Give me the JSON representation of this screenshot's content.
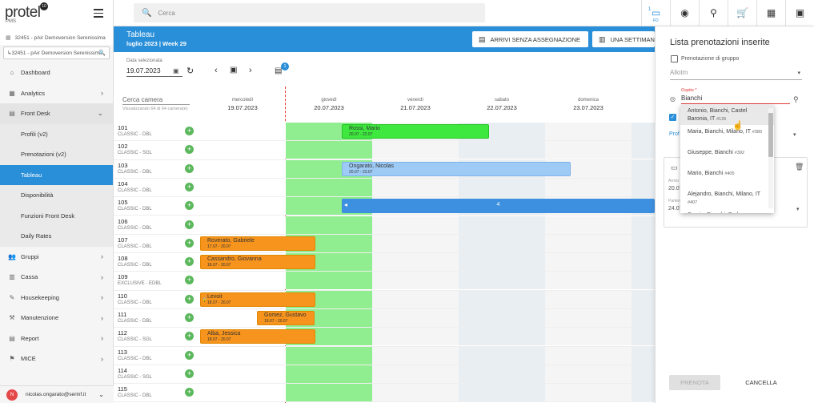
{
  "app": {
    "logo": "protel",
    "logo_badge": "10",
    "logo_sub": "PMS",
    "property": "32451 - pAir Demoversion Serenissima",
    "property_select": "32451 - pAir Demoversion Serenissima"
  },
  "sidebar": {
    "items": [
      {
        "label": "Dashboard",
        "icon": "home-icon",
        "glyph": "⌂"
      },
      {
        "label": "Analytics",
        "icon": "chart-icon",
        "glyph": "▦"
      },
      {
        "label": "Front Desk",
        "icon": "desk-icon",
        "glyph": "▤"
      }
    ],
    "sub": [
      {
        "label": "Profili (v2)"
      },
      {
        "label": "Prenotazioni (v2)"
      },
      {
        "label": "Tableau"
      },
      {
        "label": "Disponibilità"
      },
      {
        "label": "Funzioni Front Desk"
      },
      {
        "label": "Daily Rates"
      }
    ],
    "items2": [
      {
        "label": "Gruppi",
        "icon": "group-icon",
        "glyph": "👥"
      },
      {
        "label": "Cassa",
        "icon": "cash-icon",
        "glyph": "▥"
      },
      {
        "label": "Housekeeping",
        "icon": "broom-icon",
        "glyph": "✎"
      },
      {
        "label": "Manutenzione",
        "icon": "wrench-icon",
        "glyph": "⚒"
      },
      {
        "label": "Report",
        "icon": "report-icon",
        "glyph": "▤"
      },
      {
        "label": "MICE",
        "icon": "mice-icon",
        "glyph": "⚑"
      }
    ],
    "user": {
      "initial": "N",
      "email": "nicolas.ongarato@serinf.it"
    }
  },
  "topbar": {
    "search_placeholder": "Cerca",
    "icons": [
      {
        "name": "front-office-icon",
        "glyph": "▭",
        "num": "1",
        "label": "FD"
      },
      {
        "name": "target-icon",
        "glyph": "◉"
      },
      {
        "name": "person-check-icon",
        "glyph": "⚲"
      },
      {
        "name": "cart-icon",
        "glyph": "🛒"
      },
      {
        "name": "apps-grid-icon",
        "glyph": "▦"
      },
      {
        "name": "calendar-icon",
        "glyph": "▣"
      }
    ]
  },
  "tableau": {
    "title": "Tableau",
    "week": "luglio 2023 | Week 29",
    "btn_unassigned": "ARRIVI SENZA ASSEGNAZIONE",
    "btn_week": "UNA SETTIMANA",
    "date_label": "Data selezionata",
    "date_value": "19.07.2023",
    "list_badge": "1",
    "room_search": "Cerca camera",
    "room_search_sub": "Visualizzando 64 di 64 camera(e)",
    "days": [
      {
        "name": "mercoledì",
        "date": "19.07.2023"
      },
      {
        "name": "giovedì",
        "date": "20.07.2023"
      },
      {
        "name": "venerdì",
        "date": "21.07.2023"
      },
      {
        "name": "sabato",
        "date": "22.07.2023"
      },
      {
        "name": "domenica",
        "date": "23.07.2023"
      }
    ],
    "rooms": [
      {
        "no": "101",
        "type": "CLASSIC - DBL"
      },
      {
        "no": "102",
        "type": "CLASSIC - SGL"
      },
      {
        "no": "103",
        "type": "CLASSIC - DBL"
      },
      {
        "no": "104",
        "type": "CLASSIC - DBL"
      },
      {
        "no": "105",
        "type": "CLASSIC - DBL"
      },
      {
        "no": "106",
        "type": "CLASSIC - DBL"
      },
      {
        "no": "107",
        "type": "CLASSIC - DBL"
      },
      {
        "no": "108",
        "type": "CLASSIC - DBL"
      },
      {
        "no": "109",
        "type": "EXCLUSIVE - EDBL"
      },
      {
        "no": "110",
        "type": "CLASSIC - DBL"
      },
      {
        "no": "111",
        "type": "CLASSIC - DBL"
      },
      {
        "no": "112",
        "type": "CLASSIC - SGL"
      },
      {
        "no": "113",
        "type": "CLASSIC - DBL"
      },
      {
        "no": "114",
        "type": "CLASSIC - SGL"
      },
      {
        "no": "115",
        "type": "CLASSIC - DBL"
      }
    ],
    "bookings": [
      {
        "row": 0,
        "name": "Rossi, Mario",
        "dates": "20.07 - 22.07",
        "color": "green",
        "start": 1.0,
        "end": 3.0
      },
      {
        "row": 2,
        "name": "Ongarato, Nicolas",
        "dates": "20.07 - 23.07",
        "color": "lblue",
        "start": 1.0,
        "end": 4.0
      },
      {
        "row": 4,
        "name": "4",
        "dates": "",
        "color": "blue",
        "start": 1.0,
        "end": 5.5
      },
      {
        "row": 6,
        "name": "Roverato, Gabriele",
        "dates": "17.07 - 20.07",
        "color": "orange",
        "start": -0.5,
        "end": 0.5
      },
      {
        "row": 7,
        "name": "Cassandro, Giovanna",
        "dates": "18.07 - 20.07",
        "color": "orange",
        "start": -0.5,
        "end": 0.5
      },
      {
        "row": 9,
        "name": "Levoit",
        "dates": "18.07 - 20.07",
        "color": "orange",
        "start": -0.5,
        "end": 0.5,
        "lock": true
      },
      {
        "row": 10,
        "name": "Gomez, Gustavo",
        "dates": "19.07 - 20.07",
        "color": "orange",
        "start": 0.0,
        "end": 0.5
      },
      {
        "row": 11,
        "name": "Alba, Jessica",
        "dates": "18.07 - 20.07",
        "color": "orange",
        "start": -0.5,
        "end": 0.5
      }
    ]
  },
  "panel": {
    "title": "Lista prenotazioni inserite",
    "group_booking": "Prenotazione di gruppo",
    "allotm": "Allotm",
    "ospite_label": "Ospite *",
    "ospite_value": "Bianchi",
    "hidden_arr": "Arrivo",
    "hidden_arr_val": "20.07",
    "hidden_par": "Partenza",
    "hidden_par_val": "24.07",
    "btn_prenota": "PRENOTA",
    "btn_cancel": "CANCELLA"
  },
  "suggestions": [
    {
      "name": "Antonio, Bianchi, Castel Baronia, IT",
      "id": "#126"
    },
    {
      "name": "Maria, Bianchi, Milano, IT",
      "id": "#380"
    },
    {
      "name": "Giuseppe, Bianchi",
      "id": "#392"
    },
    {
      "name": "Mario, Bianchi",
      "id": "#405"
    },
    {
      "name": "Alejandro, Bianchi, Milano, IT",
      "id": "#407"
    },
    {
      "name": "Sergio, Bianchi, Padova,",
      "id": ""
    }
  ]
}
